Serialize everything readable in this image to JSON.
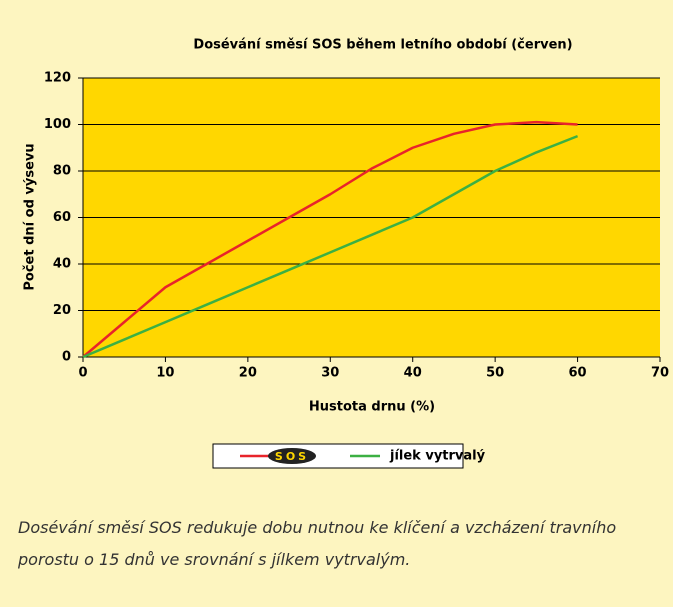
{
  "chart_data": {
    "type": "line",
    "title": "Dosévání směsí SOS během letního období (červen)",
    "x_label": "Hustota drnu (%)",
    "y_label": "Počet dní od výsevu",
    "x": [
      0,
      5,
      10,
      15,
      20,
      25,
      30,
      35,
      40,
      45,
      50,
      55,
      60
    ],
    "series": [
      {
        "name": "SOS",
        "color": "#e8242a",
        "values": [
          0,
          15,
          30,
          40,
          50,
          60,
          70,
          81,
          90,
          96,
          100,
          101,
          100
        ]
      },
      {
        "name": "jílek vytrvalý",
        "color": "#3cb043",
        "values": [
          0,
          7.5,
          15,
          22.5,
          30,
          37.5,
          45,
          52.5,
          60,
          70,
          80,
          88,
          95
        ]
      }
    ],
    "xlim": [
      0,
      70
    ],
    "xticks": [
      0,
      10,
      20,
      30,
      40,
      50,
      60,
      70
    ],
    "ylim": [
      0,
      120
    ],
    "yticks": [
      0,
      20,
      40,
      60,
      80,
      100,
      120
    ],
    "grid": true,
    "plot_color": "#ffd700",
    "caption": [
      "Dosévání směsí SOS redukuje dobu nutnou ke klíčení a vzcházení travního",
      "porostu o 15 dnů ve srovnání s jílkem vytrvalým."
    ]
  }
}
